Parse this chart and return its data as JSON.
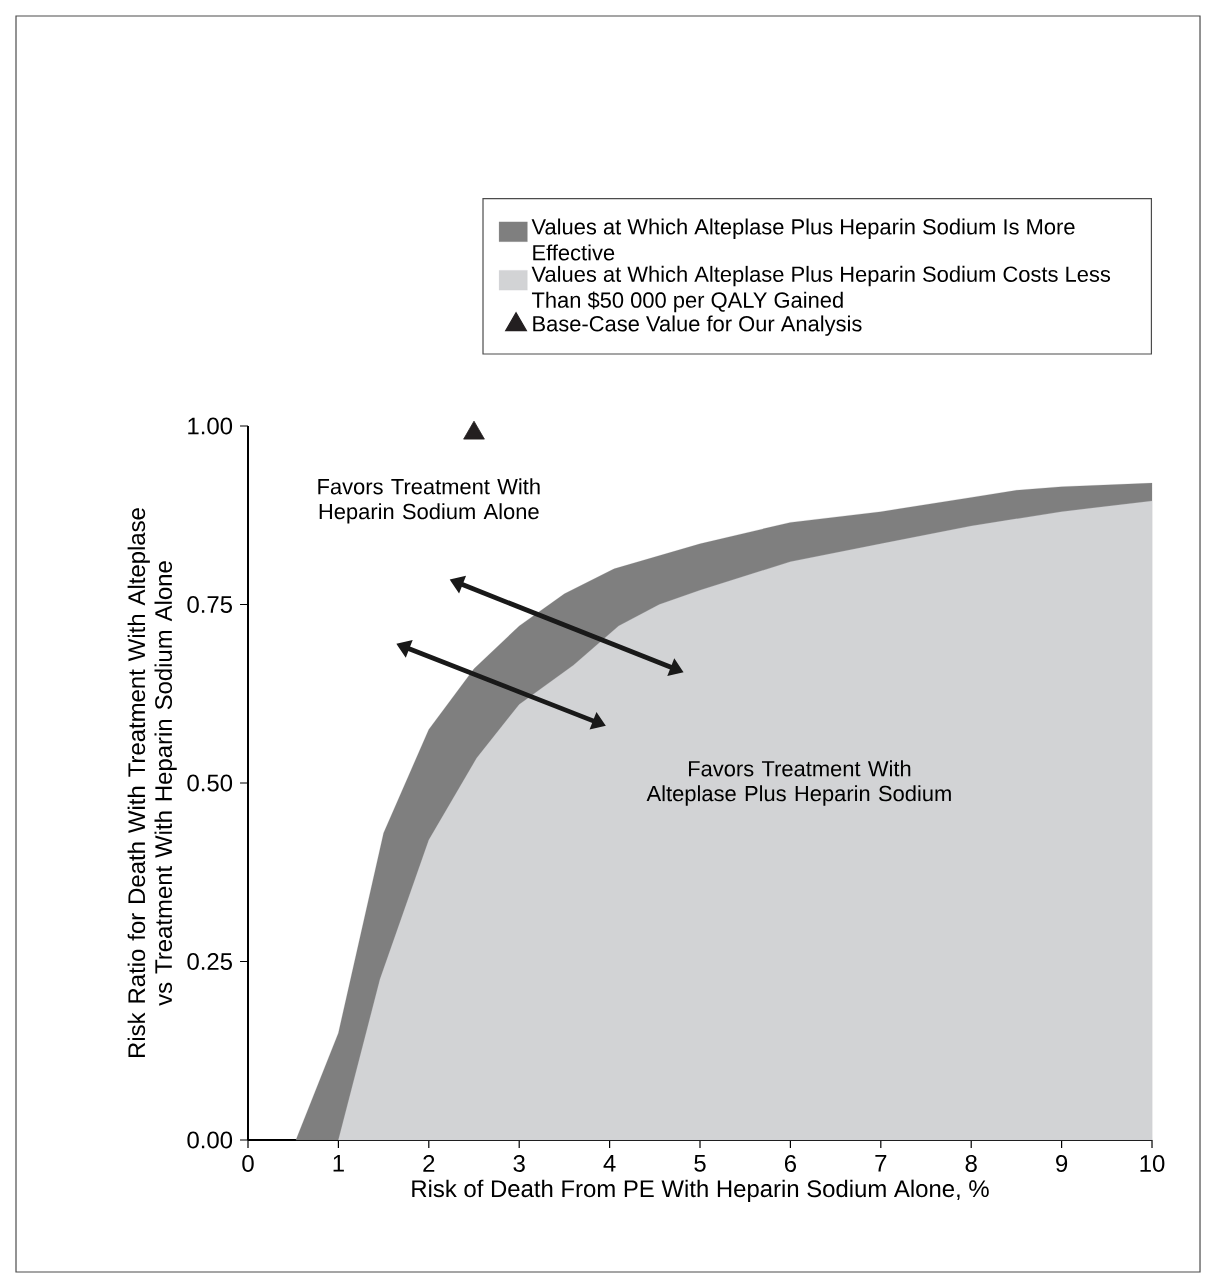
{
  "chart_data": {
    "type": "area",
    "xlabel": "Risk of Death From PE With Heparin Sodium Alone, %",
    "ylabel": "Risk Ratio for Death With Treatment With Alteplase vs Treatment With Heparin Sodium Alone",
    "series": [
      {
        "name": "Values at Which Alteplase Plus Heparin Sodium Is More Effective",
        "color": "#7f7f7f",
        "x": [
          0.53,
          1.0,
          1.5,
          2.0,
          2.5,
          3.0,
          3.5,
          4.05,
          5,
          6,
          7,
          8,
          8.5,
          9,
          10
        ],
        "values": [
          0,
          0.15,
          0.43,
          0.575,
          0.66,
          0.72,
          0.765,
          0.8,
          0.835,
          0.865,
          0.88,
          0.9,
          0.91,
          0.915,
          0.92
        ]
      },
      {
        "name": "Values at Which Alteplase Plus Heparin Sodium Costs Less Than $50 000 per QALY Gained",
        "color": "#d2d3d5",
        "x": [
          1.0,
          1.46,
          2.0,
          2.53,
          3.0,
          3.6,
          4.1,
          4.55,
          5,
          6,
          7,
          8,
          9,
          10
        ],
        "values": [
          0,
          0.225,
          0.42,
          0.535,
          0.61,
          0.665,
          0.72,
          0.75,
          0.77,
          0.81,
          0.835,
          0.86,
          0.88,
          0.895
        ]
      },
      {
        "name": "Base-Case Value for Our Analysis",
        "type": "scatter",
        "marker": "triangle",
        "color": "#231f20",
        "x": [
          2.5
        ],
        "values": [
          0.99
        ]
      }
    ],
    "annotations": [
      "Favors Treatment With Heparin Sodium Alone",
      "Favors Treatment With Alteplase Plus Heparin Sodium"
    ],
    "xlim": [
      0,
      10
    ],
    "ylim": [
      0,
      1
    ],
    "xticks": [
      0,
      1,
      2,
      3,
      4,
      5,
      6,
      7,
      8,
      9,
      10
    ],
    "yticks": [
      {
        "value": 0,
        "label": "0.00"
      },
      {
        "value": 0.25,
        "label": "0.25"
      },
      {
        "value": 0.5,
        "label": "0.50"
      },
      {
        "value": 0.75,
        "label": "0.75"
      },
      {
        "value": 1,
        "label": "1.00"
      }
    ],
    "legend": "top",
    "grid": false
  }
}
